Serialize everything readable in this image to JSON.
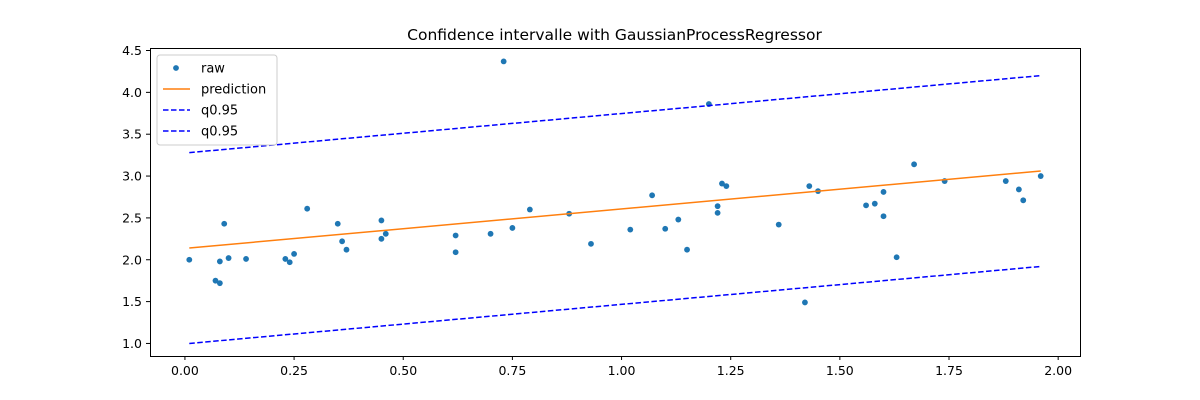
{
  "chart_data": {
    "type": "scatter",
    "title": "Confidence intervalle with GaussianProcessRegressor",
    "xlabel": "",
    "ylabel": "",
    "xlim": [
      -0.08,
      2.05
    ],
    "ylim": [
      0.85,
      4.53
    ],
    "xticks": [
      0.0,
      0.25,
      0.5,
      0.75,
      1.0,
      1.25,
      1.5,
      1.75,
      2.0
    ],
    "xtick_labels": [
      "0.00",
      "0.25",
      "0.50",
      "0.75",
      "1.00",
      "1.25",
      "1.50",
      "1.75",
      "2.00"
    ],
    "yticks": [
      1.0,
      1.5,
      2.0,
      2.5,
      3.0,
      3.5,
      4.0,
      4.5
    ],
    "ytick_labels": [
      "1.0",
      "1.5",
      "2.0",
      "2.5",
      "3.0",
      "3.5",
      "4.0",
      "4.5"
    ],
    "grid": false,
    "legend_position": "top-left",
    "series": [
      {
        "name": "raw",
        "kind": "scatter",
        "color": "#1f77b4",
        "x": [
          0.01,
          0.07,
          0.08,
          0.08,
          0.09,
          0.1,
          0.14,
          0.23,
          0.24,
          0.25,
          0.28,
          0.35,
          0.36,
          0.37,
          0.45,
          0.45,
          0.46,
          0.62,
          0.62,
          0.7,
          0.75,
          0.79,
          0.88,
          0.93,
          1.02,
          1.07,
          1.1,
          1.13,
          1.15,
          1.2,
          1.22,
          1.22,
          1.23,
          1.24,
          1.36,
          1.42,
          1.43,
          1.45,
          1.56,
          1.58,
          1.6,
          1.6,
          1.63,
          1.67,
          1.74,
          1.88,
          1.91,
          1.92,
          1.96,
          0.73
        ],
        "y": [
          2.0,
          1.75,
          1.72,
          1.98,
          2.43,
          2.02,
          2.01,
          2.01,
          1.97,
          2.07,
          2.61,
          2.43,
          2.22,
          2.12,
          2.47,
          2.25,
          2.31,
          2.29,
          2.09,
          2.31,
          2.38,
          2.6,
          2.55,
          2.19,
          2.36,
          2.77,
          2.37,
          2.48,
          2.12,
          3.86,
          2.64,
          2.56,
          2.91,
          2.88,
          2.42,
          1.49,
          2.88,
          2.82,
          2.65,
          2.67,
          2.52,
          2.81,
          2.03,
          3.14,
          2.94,
          2.94,
          2.84,
          2.71,
          3.0,
          4.37
        ]
      },
      {
        "name": "prediction",
        "kind": "line",
        "color": "#ff7f0e",
        "dash": false,
        "x": [
          0.01,
          1.96
        ],
        "y": [
          2.14,
          3.06
        ]
      },
      {
        "name": "q0.95",
        "kind": "line",
        "color": "#0000ff",
        "dash": true,
        "x": [
          0.01,
          1.96
        ],
        "y": [
          3.28,
          4.2
        ]
      },
      {
        "name": "q0.95",
        "kind": "line",
        "color": "#0000ff",
        "dash": true,
        "x": [
          0.01,
          1.96
        ],
        "y": [
          1.0,
          1.92
        ]
      }
    ]
  }
}
